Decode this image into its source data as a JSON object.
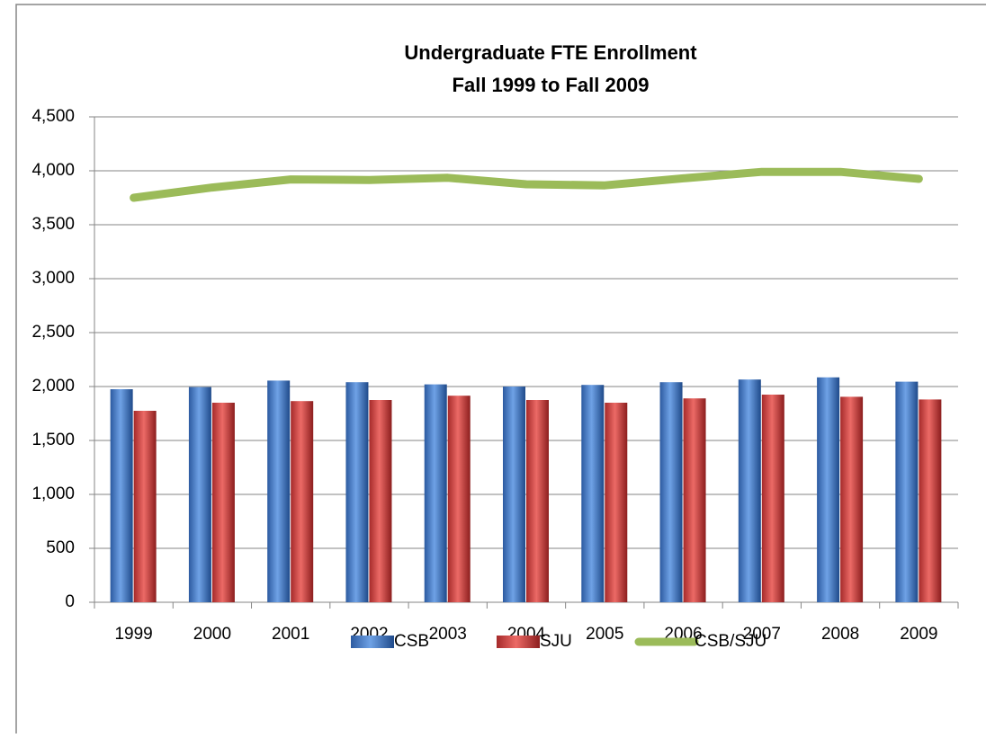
{
  "chart_data": {
    "type": "bar",
    "title": "Undergraduate FTE Enrollment",
    "subtitle": "Fall 1999 to Fall 2009",
    "categories": [
      "1999",
      "2000",
      "2001",
      "2002",
      "2003",
      "2004",
      "2005",
      "2006",
      "2007",
      "2008",
      "2009"
    ],
    "series": [
      {
        "name": "CSB",
        "type": "bar",
        "color": "#4f81bd",
        "values": [
          1975,
          1995,
          2055,
          2040,
          2020,
          2000,
          2015,
          2040,
          2065,
          2085,
          2045
        ]
      },
      {
        "name": "SJU",
        "type": "bar",
        "color": "#c0504d",
        "values": [
          1775,
          1850,
          1865,
          1875,
          1915,
          1875,
          1850,
          1890,
          1925,
          1905,
          1880
        ]
      },
      {
        "name": "CSB/SJU",
        "type": "line",
        "color": "#9bbb59",
        "values": [
          3750,
          3845,
          3920,
          3915,
          3935,
          3875,
          3865,
          3930,
          3990,
          3990,
          3925
        ]
      }
    ],
    "ylim": [
      0,
      4500
    ],
    "yticks": [
      0,
      500,
      {
        "value": 1000,
        "label": "1,000"
      },
      {
        "value": 1500,
        "label": "1,500"
      },
      {
        "value": 2000,
        "label": "2,000"
      },
      {
        "value": 2500,
        "label": "2,500"
      },
      {
        "value": 3000,
        "label": "3,000"
      },
      {
        "value": 3500,
        "label": "3,500"
      },
      {
        "value": 4000,
        "label": "4,000"
      },
      {
        "value": 4500,
        "label": "4,500"
      }
    ],
    "grid": true,
    "legend": "bottom"
  }
}
